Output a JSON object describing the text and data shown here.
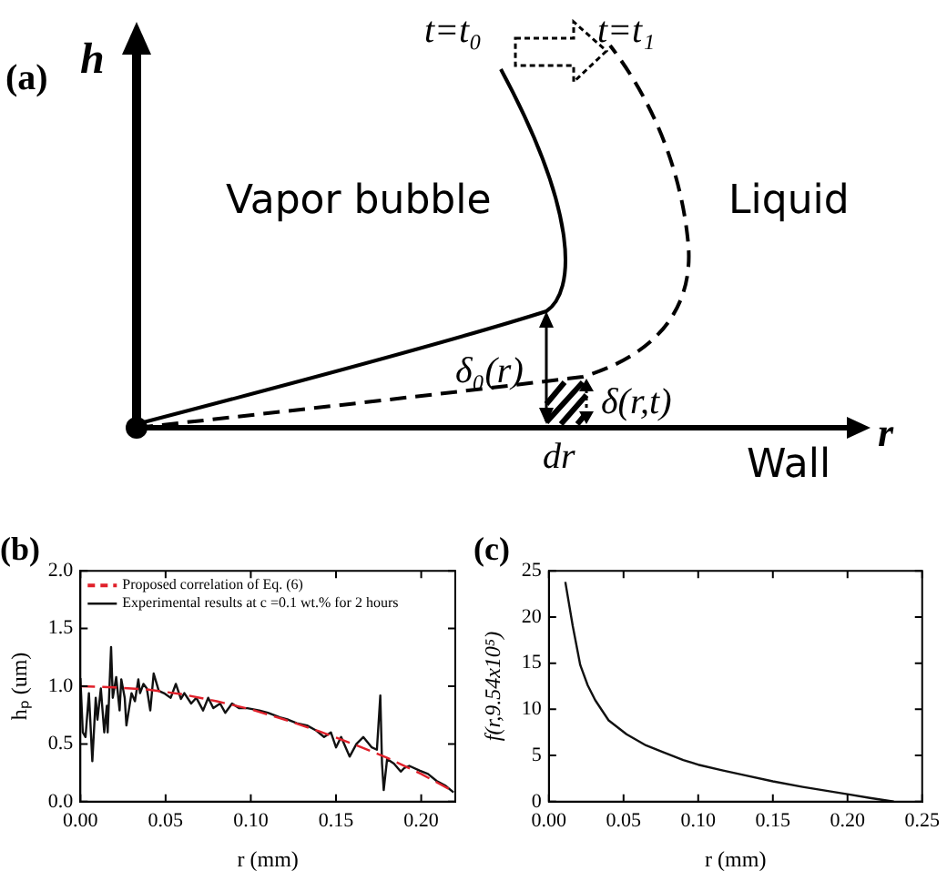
{
  "chart_data": [
    {
      "type": "other",
      "title": "(a)",
      "annotations": [
        "h",
        "t=t₀",
        "t=t₁",
        "Vapor bubble",
        "Liquid",
        "δ₀(r)",
        "δ(r,t)",
        "dr",
        "r",
        "Wall"
      ]
    },
    {
      "type": "line",
      "title": "(b)",
      "xlabel": "r (mm)",
      "ylabel": "hₚ (um)",
      "xlim": [
        0,
        0.22
      ],
      "xticks": [
        {
          "value": 0,
          "label": "0.00"
        },
        0.05,
        {
          "value": 0.1,
          "label": "0.10"
        },
        0.15,
        {
          "value": 0.2,
          "label": "0.20"
        }
      ],
      "ylim": [
        0,
        2
      ],
      "yticks": [
        {
          "value": 0,
          "label": "0.0"
        },
        0.5,
        {
          "value": 1,
          "label": "1.0"
        },
        1.5,
        {
          "value": 2,
          "label": "2.0"
        }
      ],
      "grid": false,
      "legend": "top left",
      "marker": "none",
      "series": [
        {
          "name": "Proposed correlation of Eq. (6)",
          "color": "#e0202a",
          "line_style": "dashed",
          "x": [
            0,
            0.02,
            0.04,
            0.06,
            0.08,
            0.1,
            0.12,
            0.14,
            0.16,
            0.18,
            0.2,
            0.22
          ],
          "values": [
            1.0,
            0.99,
            0.97,
            0.93,
            0.87,
            0.8,
            0.71,
            0.61,
            0.5,
            0.38,
            0.24,
            0.08
          ]
        },
        {
          "name": "Experimental results at c =0.1 wt.% for 2 hours",
          "color": "#111111",
          "line_style": "solid",
          "x": [
            0,
            0.0014,
            0.003,
            0.005,
            0.007,
            0.009,
            0.01,
            0.012,
            0.014,
            0.0155,
            0.016,
            0.018,
            0.019,
            0.021,
            0.023,
            0.024,
            0.026,
            0.027,
            0.03,
            0.032,
            0.034,
            0.035,
            0.037,
            0.039,
            0.041,
            0.043,
            0.046,
            0.049,
            0.053,
            0.056,
            0.059,
            0.061,
            0.065,
            0.068,
            0.072,
            0.075,
            0.078,
            0.082,
            0.085,
            0.089,
            0.093,
            0.098,
            0.105,
            0.11,
            0.117,
            0.122,
            0.127,
            0.133,
            0.138,
            0.143,
            0.147,
            0.15,
            0.153,
            0.158,
            0.162,
            0.166,
            0.171,
            0.174,
            0.176,
            0.177,
            0.178,
            0.18,
            0.184,
            0.188,
            0.19,
            0.193,
            0.199,
            0.204,
            0.209,
            0.214,
            0.219
          ],
          "values": [
            1.07,
            0.6,
            0.56,
            0.94,
            0.35,
            0.9,
            0.71,
            0.98,
            0.6,
            0.83,
            0.6,
            1.34,
            0.9,
            1.08,
            0.79,
            1.06,
            0.9,
            0.66,
            0.94,
            0.87,
            1.06,
            0.94,
            1.02,
            0.98,
            0.79,
            1.11,
            0.96,
            0.94,
            0.9,
            1.02,
            0.89,
            0.94,
            0.85,
            0.9,
            0.79,
            0.9,
            0.81,
            0.85,
            0.77,
            0.85,
            0.81,
            0.81,
            0.79,
            0.77,
            0.73,
            0.71,
            0.68,
            0.66,
            0.62,
            0.56,
            0.6,
            0.47,
            0.56,
            0.39,
            0.5,
            0.56,
            0.47,
            0.45,
            0.92,
            0.33,
            0.1,
            0.37,
            0.33,
            0.26,
            0.29,
            0.31,
            0.27,
            0.24,
            0.18,
            0.14,
            0.08
          ]
        }
      ]
    },
    {
      "type": "line",
      "title": "(c)",
      "xlabel": "r (mm)",
      "ylabel": "f(r,9.54x10⁵)",
      "xlim": [
        0,
        0.25
      ],
      "xticks": [
        {
          "value": 0,
          "label": "0.00"
        },
        0.05,
        {
          "value": 0.1,
          "label": "0.10"
        },
        0.15,
        {
          "value": 0.2,
          "label": "0.20"
        },
        0.25
      ],
      "ylim": [
        0,
        25
      ],
      "yticks": [
        0,
        5,
        10,
        15,
        20,
        25
      ],
      "grid": false,
      "legend": false,
      "marker": "none",
      "series": [
        {
          "color": "#111111",
          "line_style": "solid",
          "x": [
            0.011,
            0.016,
            0.021,
            0.026,
            0.031,
            0.04,
            0.052,
            0.065,
            0.076,
            0.09,
            0.1,
            0.116,
            0.13,
            0.15,
            0.17,
            0.2,
            0.215,
            0.231
          ],
          "values": [
            23.8,
            19,
            14.8,
            12.6,
            11.0,
            8.8,
            7.3,
            6.1,
            5.4,
            4.5,
            4.0,
            3.4,
            2.9,
            2.2,
            1.6,
            0.8,
            0.4,
            0
          ]
        }
      ]
    }
  ]
}
